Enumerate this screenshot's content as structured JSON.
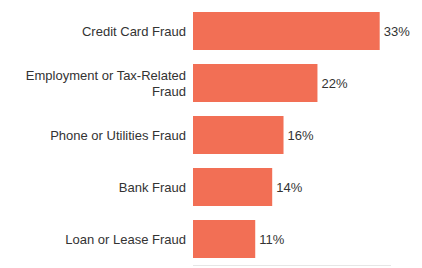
{
  "chart_data": {
    "type": "bar",
    "orientation": "horizontal",
    "categories": [
      "Credit Card Fraud",
      "Employment or Tax-Related Fraud",
      "Phone or Utilities Fraud",
      "Bank Fraud",
      "Loan or Lease Fraud"
    ],
    "values": [
      33,
      22,
      16,
      14,
      11
    ],
    "value_labels": [
      "33%",
      "22%",
      "16%",
      "14%",
      "11%"
    ],
    "color": "#f26f55",
    "xlim": [
      0,
      35
    ],
    "data_labels": true,
    "tick_labels": "y",
    "grid": false
  }
}
